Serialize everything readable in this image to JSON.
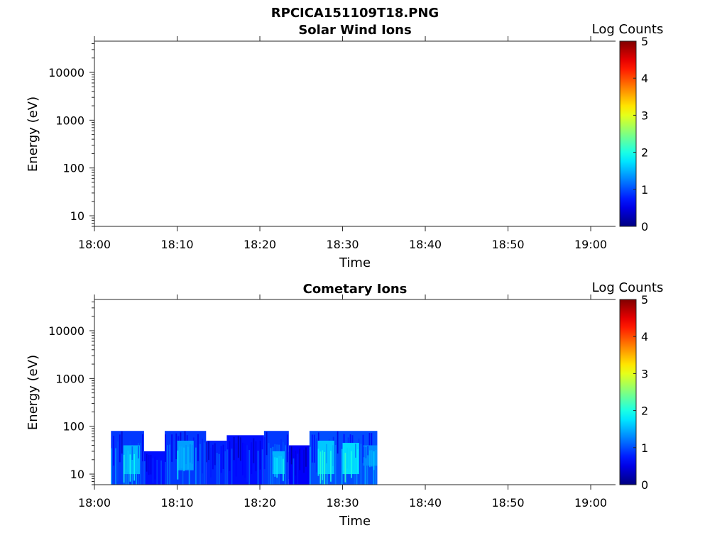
{
  "figure": {
    "title": "RPCICA151109T18.PNG"
  },
  "chart_data": [
    {
      "type": "heatmap",
      "title": "Solar Wind Ions",
      "xlabel": "Time",
      "ylabel": "Energy (eV)",
      "x_ticks": [
        "18:00",
        "18:10",
        "18:20",
        "18:30",
        "18:40",
        "18:50",
        "19:00"
      ],
      "x_range_minutes": [
        0,
        63
      ],
      "y_scale": "log",
      "y_ticks": [
        "10",
        "100",
        "1000",
        "10000"
      ],
      "y_range": [
        6,
        45000
      ],
      "colorbar": {
        "label": "Log Counts",
        "ticks": [
          "0",
          "1",
          "2",
          "3",
          "4",
          "5"
        ],
        "range": [
          0,
          5
        ],
        "colormap": "jet"
      },
      "bands": []
    },
    {
      "type": "heatmap",
      "title": "Cometary Ions",
      "xlabel": "Time",
      "ylabel": "Energy (eV)",
      "x_ticks": [
        "18:00",
        "18:10",
        "18:20",
        "18:30",
        "18:40",
        "18:50",
        "19:00"
      ],
      "x_range_minutes": [
        0,
        63
      ],
      "y_scale": "log",
      "y_ticks": [
        "10",
        "100",
        "1000",
        "10000"
      ],
      "y_range": [
        6,
        45000
      ],
      "colorbar": {
        "label": "Log Counts",
        "ticks": [
          "0",
          "1",
          "2",
          "3",
          "4",
          "5"
        ],
        "range": [
          0,
          5
        ],
        "colormap": "jet"
      },
      "data_extent": {
        "time_start": "18:02",
        "time_end": "18:34",
        "energy_min_eV": 6,
        "energy_max_eV": 80
      },
      "bands": [
        {
          "t0": 2.0,
          "t1": 6.0,
          "emin": 6,
          "emax": 80,
          "level": 0.9
        },
        {
          "t0": 3.5,
          "t1": 5.5,
          "emin": 10,
          "emax": 40,
          "level": 1.5
        },
        {
          "t0": 6.0,
          "t1": 8.5,
          "emin": 6,
          "emax": 30,
          "level": 0.7
        },
        {
          "t0": 8.5,
          "t1": 13.5,
          "emin": 6,
          "emax": 80,
          "level": 0.9
        },
        {
          "t0": 10.0,
          "t1": 12.0,
          "emin": 12,
          "emax": 50,
          "level": 1.4
        },
        {
          "t0": 13.5,
          "t1": 16.0,
          "emin": 6,
          "emax": 50,
          "level": 0.8
        },
        {
          "t0": 16.0,
          "t1": 20.5,
          "emin": 6,
          "emax": 65,
          "level": 0.7
        },
        {
          "t0": 20.5,
          "t1": 23.5,
          "emin": 6,
          "emax": 80,
          "level": 0.9
        },
        {
          "t0": 21.5,
          "t1": 23.0,
          "emin": 10,
          "emax": 30,
          "level": 1.5
        },
        {
          "t0": 23.5,
          "t1": 26.0,
          "emin": 6,
          "emax": 40,
          "level": 0.6
        },
        {
          "t0": 26.0,
          "t1": 34.2,
          "emin": 6,
          "emax": 80,
          "level": 1.0
        },
        {
          "t0": 27.0,
          "t1": 29.0,
          "emin": 10,
          "emax": 50,
          "level": 1.6
        },
        {
          "t0": 30.0,
          "t1": 32.0,
          "emin": 10,
          "emax": 45,
          "level": 1.7
        },
        {
          "t0": 32.5,
          "t1": 34.2,
          "emin": 15,
          "emax": 40,
          "level": 1.3
        }
      ]
    }
  ]
}
